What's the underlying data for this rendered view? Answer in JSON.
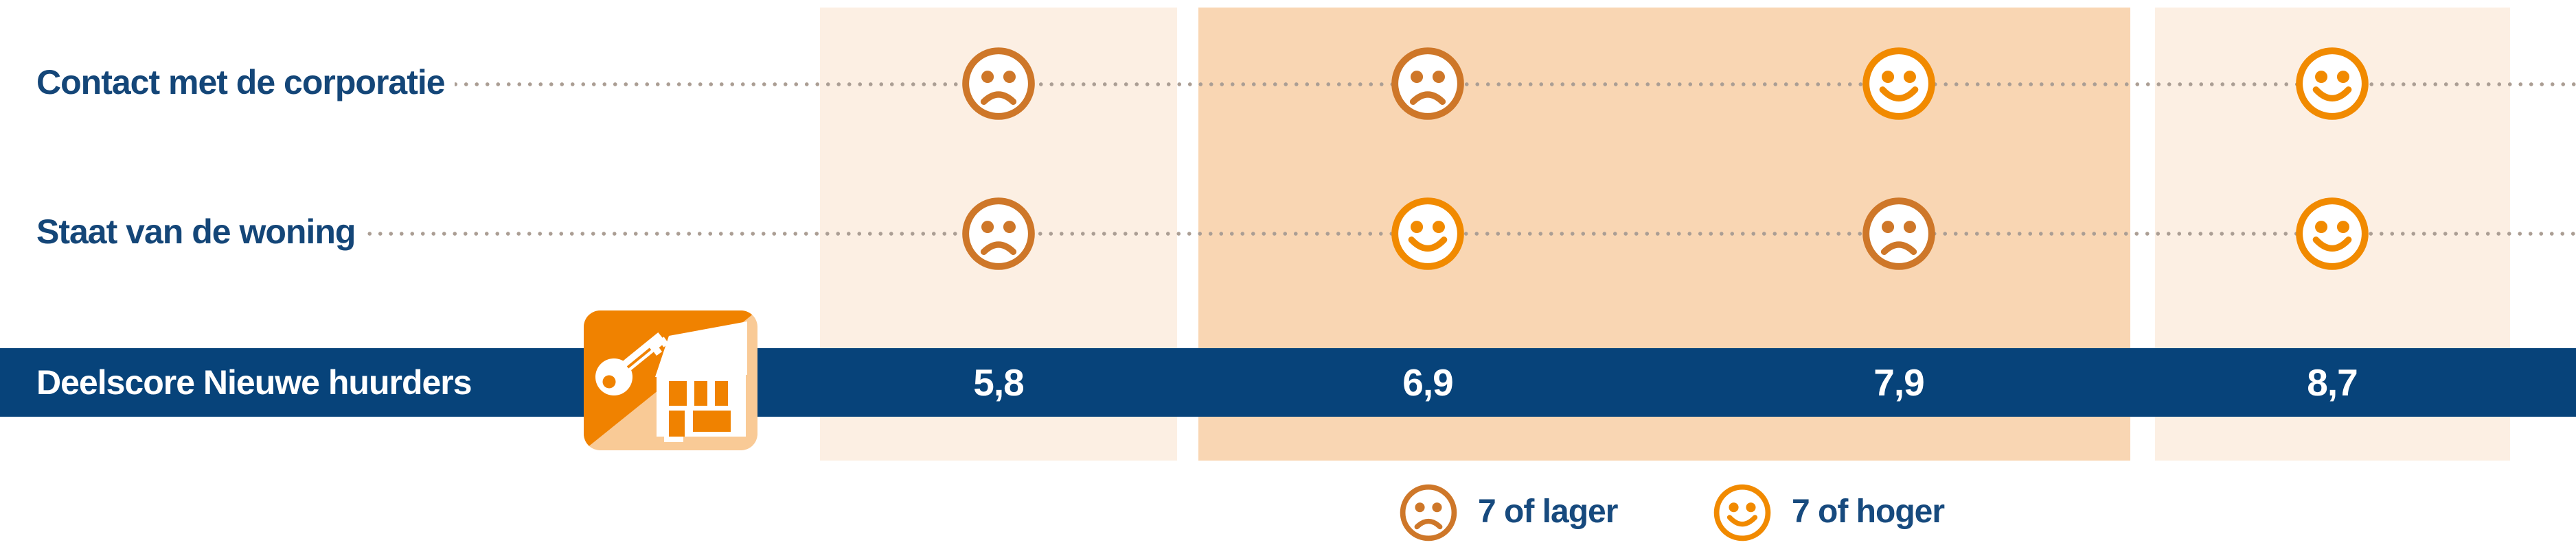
{
  "chart_data": {
    "type": "table",
    "title": "Deelscore Nieuwe huurders",
    "row_labels": [
      "Contact met de corporatie",
      "Staat van de woning"
    ],
    "columns": [
      "5,8",
      "6,9",
      "7,9",
      "8,7"
    ],
    "cells": [
      [
        "sad",
        "sad",
        "happy",
        "happy"
      ],
      [
        "sad",
        "happy",
        "sad",
        "happy"
      ]
    ],
    "scores_numeric": [
      5.8,
      6.9,
      7.9,
      8.7
    ],
    "legend": [
      {
        "icon": "sad-smiley",
        "label": "7 of lager"
      },
      {
        "icon": "happy-smiley",
        "label": "7 of hoger"
      }
    ],
    "legend_position": "bottom-center",
    "grid": "dotted-leader-lines"
  },
  "rows": [
    {
      "label": "Contact met de corporatie",
      "cells": [
        "sad",
        "sad",
        "happy",
        "happy"
      ]
    },
    {
      "label": "Staat van de woning",
      "cells": [
        "sad",
        "happy",
        "sad",
        "happy"
      ]
    }
  ],
  "score_row": {
    "label": "Deelscore Nieuwe huurders",
    "icon": "key-house-icon",
    "scores": [
      "5,8",
      "6,9",
      "7,9",
      "8,7"
    ]
  },
  "legend": {
    "items": [
      {
        "icon": "sad-smiley-icon",
        "label": "7 of lager"
      },
      {
        "icon": "happy-smiley-icon",
        "label": "7 of hoger"
      }
    ]
  },
  "colors": {
    "bar_blue": "#07437A",
    "text_blue": "#144678",
    "happy_orange": "#F18A00",
    "sad_orange": "#CE7729",
    "band_light": "#FCEFE3",
    "band_mid": "#F9D6B3",
    "dot_gray": "#AB9E94",
    "icon_orange": "#F08200",
    "icon_peach": "#F9CA96"
  }
}
